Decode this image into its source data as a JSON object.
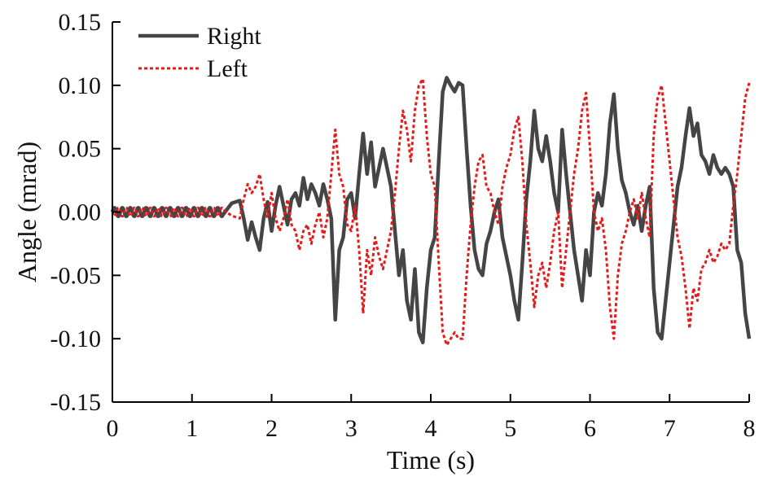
{
  "chart_data": {
    "type": "line",
    "xlabel": "Time (s)",
    "ylabel": "Angle (mrad)",
    "xlim": [
      0,
      8
    ],
    "ylim": [
      -0.15,
      0.15
    ],
    "x_ticks": [
      "0",
      "1",
      "2",
      "3",
      "4",
      "5",
      "6",
      "7",
      "8"
    ],
    "y_ticks": [
      "-0.15",
      "-0.10",
      "-0.05",
      "0.00",
      "0.05",
      "0.10",
      "0.15"
    ],
    "grid": false,
    "legend_position": "top-left",
    "series": [
      {
        "name": "Right",
        "color": "#454545",
        "style": "solid",
        "points": [
          [
            0.0,
            0.0
          ],
          [
            1.4,
            0.0
          ],
          [
            1.5,
            0.007
          ],
          [
            1.6,
            0.009
          ],
          [
            1.65,
            -0.005
          ],
          [
            1.7,
            -0.022
          ],
          [
            1.75,
            -0.008
          ],
          [
            1.8,
            -0.02
          ],
          [
            1.85,
            -0.03
          ],
          [
            1.9,
            -0.005
          ],
          [
            1.95,
            0.008
          ],
          [
            2.0,
            -0.015
          ],
          [
            2.05,
            0.005
          ],
          [
            2.1,
            0.02
          ],
          [
            2.15,
            0.005
          ],
          [
            2.2,
            -0.01
          ],
          [
            2.25,
            0.01
          ],
          [
            2.3,
            0.015
          ],
          [
            2.35,
            0.005
          ],
          [
            2.4,
            0.027
          ],
          [
            2.45,
            0.01
          ],
          [
            2.5,
            0.022
          ],
          [
            2.55,
            0.015
          ],
          [
            2.6,
            0.005
          ],
          [
            2.65,
            0.022
          ],
          [
            2.7,
            0.01
          ],
          [
            2.75,
            -0.005
          ],
          [
            2.8,
            -0.085
          ],
          [
            2.85,
            -0.03
          ],
          [
            2.9,
            -0.02
          ],
          [
            2.95,
            0.01
          ],
          [
            3.0,
            0.015
          ],
          [
            3.05,
            -0.005
          ],
          [
            3.1,
            0.03
          ],
          [
            3.15,
            0.062
          ],
          [
            3.2,
            0.03
          ],
          [
            3.25,
            0.055
          ],
          [
            3.3,
            0.02
          ],
          [
            3.35,
            0.035
          ],
          [
            3.4,
            0.05
          ],
          [
            3.45,
            0.035
          ],
          [
            3.5,
            0.02
          ],
          [
            3.55,
            -0.015
          ],
          [
            3.6,
            -0.05
          ],
          [
            3.65,
            -0.03
          ],
          [
            3.7,
            -0.07
          ],
          [
            3.75,
            -0.085
          ],
          [
            3.8,
            -0.045
          ],
          [
            3.85,
            -0.095
          ],
          [
            3.9,
            -0.103
          ],
          [
            3.95,
            -0.06
          ],
          [
            4.0,
            -0.03
          ],
          [
            4.05,
            -0.02
          ],
          [
            4.1,
            0.04
          ],
          [
            4.15,
            0.095
          ],
          [
            4.2,
            0.106
          ],
          [
            4.25,
            0.1
          ],
          [
            4.3,
            0.095
          ],
          [
            4.35,
            0.102
          ],
          [
            4.4,
            0.1
          ],
          [
            4.45,
            0.05
          ],
          [
            4.5,
            0.005
          ],
          [
            4.55,
            -0.03
          ],
          [
            4.6,
            -0.045
          ],
          [
            4.65,
            -0.05
          ],
          [
            4.7,
            -0.025
          ],
          [
            4.75,
            -0.015
          ],
          [
            4.8,
            0.0
          ],
          [
            4.85,
            0.01
          ],
          [
            4.9,
            -0.02
          ],
          [
            4.95,
            -0.035
          ],
          [
            5.0,
            -0.05
          ],
          [
            5.05,
            -0.07
          ],
          [
            5.1,
            -0.085
          ],
          [
            5.15,
            -0.04
          ],
          [
            5.2,
            0.01
          ],
          [
            5.25,
            0.04
          ],
          [
            5.3,
            0.08
          ],
          [
            5.35,
            0.05
          ],
          [
            5.4,
            0.04
          ],
          [
            5.45,
            0.06
          ],
          [
            5.5,
            0.04
          ],
          [
            5.55,
            0.015
          ],
          [
            5.6,
            0.0
          ],
          [
            5.65,
            0.065
          ],
          [
            5.7,
            0.03
          ],
          [
            5.75,
            0.0
          ],
          [
            5.8,
            -0.03
          ],
          [
            5.85,
            -0.05
          ],
          [
            5.9,
            -0.07
          ],
          [
            5.95,
            -0.03
          ],
          [
            6.0,
            -0.05
          ],
          [
            6.05,
            0.0
          ],
          [
            6.1,
            0.015
          ],
          [
            6.15,
            0.005
          ],
          [
            6.2,
            0.03
          ],
          [
            6.25,
            0.07
          ],
          [
            6.3,
            0.093
          ],
          [
            6.35,
            0.05
          ],
          [
            6.4,
            0.025
          ],
          [
            6.45,
            0.015
          ],
          [
            6.5,
            0.0
          ],
          [
            6.55,
            -0.01
          ],
          [
            6.6,
            0.005
          ],
          [
            6.65,
            -0.015
          ],
          [
            6.7,
            0.005
          ],
          [
            6.75,
            0.02
          ],
          [
            6.8,
            -0.06
          ],
          [
            6.85,
            -0.095
          ],
          [
            6.9,
            -0.1
          ],
          [
            6.95,
            -0.07
          ],
          [
            7.0,
            -0.04
          ],
          [
            7.05,
            -0.01
          ],
          [
            7.1,
            0.02
          ],
          [
            7.15,
            0.035
          ],
          [
            7.2,
            0.06
          ],
          [
            7.25,
            0.082
          ],
          [
            7.3,
            0.06
          ],
          [
            7.35,
            0.07
          ],
          [
            7.4,
            0.045
          ],
          [
            7.45,
            0.04
          ],
          [
            7.5,
            0.03
          ],
          [
            7.55,
            0.045
          ],
          [
            7.6,
            0.035
          ],
          [
            7.65,
            0.03
          ],
          [
            7.7,
            0.035
          ],
          [
            7.75,
            0.03
          ],
          [
            7.8,
            0.02
          ],
          [
            7.85,
            -0.03
          ],
          [
            7.9,
            -0.04
          ],
          [
            7.95,
            -0.08
          ],
          [
            8.0,
            -0.1
          ]
        ]
      },
      {
        "name": "Left",
        "color": "#e31b1b",
        "style": "dotted",
        "points": [
          [
            0.0,
            0.0
          ],
          [
            1.4,
            0.0
          ],
          [
            1.5,
            -0.003
          ],
          [
            1.6,
            -0.005
          ],
          [
            1.65,
            0.01
          ],
          [
            1.7,
            0.022
          ],
          [
            1.75,
            0.015
          ],
          [
            1.8,
            0.02
          ],
          [
            1.85,
            0.03
          ],
          [
            1.9,
            0.01
          ],
          [
            1.95,
            -0.005
          ],
          [
            2.0,
            0.015
          ],
          [
            2.05,
            -0.005
          ],
          [
            2.1,
            -0.015
          ],
          [
            2.15,
            -0.005
          ],
          [
            2.2,
            0.01
          ],
          [
            2.25,
            -0.01
          ],
          [
            2.3,
            -0.015
          ],
          [
            2.35,
            -0.03
          ],
          [
            2.4,
            -0.015
          ],
          [
            2.45,
            -0.01
          ],
          [
            2.5,
            -0.025
          ],
          [
            2.55,
            -0.01
          ],
          [
            2.6,
            0.0
          ],
          [
            2.65,
            -0.02
          ],
          [
            2.7,
            -0.005
          ],
          [
            2.75,
            0.03
          ],
          [
            2.8,
            0.065
          ],
          [
            2.85,
            0.03
          ],
          [
            2.9,
            0.02
          ],
          [
            2.95,
            -0.01
          ],
          [
            3.0,
            -0.015
          ],
          [
            3.05,
            0.005
          ],
          [
            3.1,
            -0.03
          ],
          [
            3.15,
            -0.08
          ],
          [
            3.2,
            -0.03
          ],
          [
            3.25,
            -0.05
          ],
          [
            3.3,
            -0.02
          ],
          [
            3.35,
            -0.035
          ],
          [
            3.4,
            -0.045
          ],
          [
            3.45,
            -0.03
          ],
          [
            3.5,
            -0.015
          ],
          [
            3.55,
            0.015
          ],
          [
            3.6,
            0.05
          ],
          [
            3.65,
            0.08
          ],
          [
            3.7,
            0.065
          ],
          [
            3.75,
            0.04
          ],
          [
            3.8,
            0.08
          ],
          [
            3.85,
            0.1
          ],
          [
            3.9,
            0.105
          ],
          [
            3.95,
            0.06
          ],
          [
            4.0,
            0.03
          ],
          [
            4.05,
            0.02
          ],
          [
            4.1,
            -0.04
          ],
          [
            4.15,
            -0.095
          ],
          [
            4.2,
            -0.105
          ],
          [
            4.25,
            -0.1
          ],
          [
            4.3,
            -0.095
          ],
          [
            4.35,
            -0.1
          ],
          [
            4.4,
            -0.1
          ],
          [
            4.45,
            -0.05
          ],
          [
            4.5,
            -0.01
          ],
          [
            4.55,
            0.02
          ],
          [
            4.6,
            0.04
          ],
          [
            4.65,
            0.045
          ],
          [
            4.7,
            0.02
          ],
          [
            4.75,
            0.015
          ],
          [
            4.8,
            0.0
          ],
          [
            4.85,
            -0.01
          ],
          [
            4.9,
            0.02
          ],
          [
            4.95,
            0.035
          ],
          [
            5.0,
            0.045
          ],
          [
            5.05,
            0.065
          ],
          [
            5.1,
            0.075
          ],
          [
            5.15,
            0.04
          ],
          [
            5.2,
            -0.01
          ],
          [
            5.25,
            -0.04
          ],
          [
            5.3,
            -0.075
          ],
          [
            5.35,
            -0.05
          ],
          [
            5.4,
            -0.04
          ],
          [
            5.45,
            -0.06
          ],
          [
            5.5,
            -0.04
          ],
          [
            5.55,
            -0.015
          ],
          [
            5.6,
            0.0
          ],
          [
            5.65,
            -0.06
          ],
          [
            5.7,
            -0.03
          ],
          [
            5.75,
            0.0
          ],
          [
            5.8,
            0.03
          ],
          [
            5.85,
            0.05
          ],
          [
            5.9,
            0.08
          ],
          [
            5.95,
            0.094
          ],
          [
            6.0,
            0.05
          ],
          [
            6.05,
            0.0
          ],
          [
            6.1,
            -0.015
          ],
          [
            6.15,
            -0.005
          ],
          [
            6.2,
            -0.03
          ],
          [
            6.25,
            -0.075
          ],
          [
            6.3,
            -0.1
          ],
          [
            6.35,
            -0.05
          ],
          [
            6.4,
            -0.025
          ],
          [
            6.45,
            -0.015
          ],
          [
            6.5,
            0.0
          ],
          [
            6.55,
            0.01
          ],
          [
            6.6,
            -0.005
          ],
          [
            6.65,
            0.015
          ],
          [
            6.7,
            -0.005
          ],
          [
            6.75,
            -0.02
          ],
          [
            6.8,
            0.06
          ],
          [
            6.85,
            0.09
          ],
          [
            6.9,
            0.1
          ],
          [
            6.95,
            0.07
          ],
          [
            7.0,
            0.04
          ],
          [
            7.05,
            0.01
          ],
          [
            7.1,
            -0.02
          ],
          [
            7.15,
            -0.035
          ],
          [
            7.2,
            -0.06
          ],
          [
            7.25,
            -0.092
          ],
          [
            7.3,
            -0.06
          ],
          [
            7.35,
            -0.07
          ],
          [
            7.4,
            -0.045
          ],
          [
            7.45,
            -0.04
          ],
          [
            7.5,
            -0.03
          ],
          [
            7.55,
            -0.04
          ],
          [
            7.6,
            -0.035
          ],
          [
            7.65,
            -0.025
          ],
          [
            7.7,
            -0.03
          ],
          [
            7.75,
            -0.025
          ],
          [
            7.8,
            0.005
          ],
          [
            7.85,
            0.03
          ],
          [
            7.9,
            0.06
          ],
          [
            7.95,
            0.09
          ],
          [
            8.0,
            0.102
          ]
        ]
      }
    ]
  }
}
